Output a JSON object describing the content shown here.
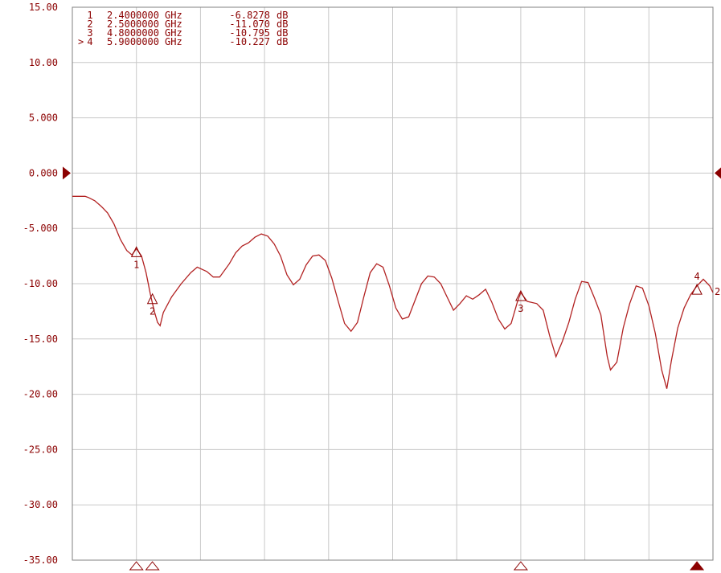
{
  "colors": {
    "trace": "#b22222",
    "text": "#8b0000",
    "grid": "#c8c8c8",
    "frame": "#808080",
    "background": "#ffffff"
  },
  "chart_data": {
    "type": "line",
    "title": "",
    "xlabel": "",
    "ylabel": "",
    "ylim": [
      -35,
      15
    ],
    "yticks": [
      "15.00",
      "10.00",
      "5.000",
      "0.000",
      "-5.000",
      "-10.00",
      "-15.00",
      "-20.00",
      "-25.00",
      "-30.00",
      "-35.00"
    ],
    "x_divisions": 10,
    "reference_level": 0,
    "series": [
      {
        "values": [
          [
            0,
            -2.1
          ],
          [
            0.2,
            -2.1
          ],
          [
            0.25,
            -2.2
          ],
          [
            0.35,
            -2.5
          ],
          [
            0.45,
            -3.0
          ],
          [
            0.55,
            -3.6
          ],
          [
            0.65,
            -4.6
          ],
          [
            0.75,
            -6.0
          ],
          [
            0.85,
            -7.0
          ],
          [
            0.93,
            -7.4
          ],
          [
            1.0,
            -6.83
          ],
          [
            1.08,
            -7.5
          ],
          [
            1.15,
            -9.0
          ],
          [
            1.22,
            -11.0
          ],
          [
            1.28,
            -12.5
          ],
          [
            1.33,
            -13.5
          ],
          [
            1.37,
            -13.8
          ],
          [
            1.42,
            -12.6
          ],
          [
            1.55,
            -11.2
          ],
          [
            1.7,
            -10.0
          ],
          [
            1.85,
            -9.0
          ],
          [
            1.95,
            -8.5
          ],
          [
            2.1,
            -8.9
          ],
          [
            2.2,
            -9.4
          ],
          [
            2.3,
            -9.4
          ],
          [
            2.45,
            -8.2
          ],
          [
            2.55,
            -7.2
          ],
          [
            2.65,
            -6.6
          ],
          [
            2.75,
            -6.3
          ],
          [
            2.85,
            -5.8
          ],
          [
            2.95,
            -5.5
          ],
          [
            3.05,
            -5.7
          ],
          [
            3.15,
            -6.4
          ],
          [
            3.25,
            -7.5
          ],
          [
            3.35,
            -9.2
          ],
          [
            3.45,
            -10.1
          ],
          [
            3.55,
            -9.6
          ],
          [
            3.65,
            -8.3
          ],
          [
            3.75,
            -7.5
          ],
          [
            3.85,
            -7.4
          ],
          [
            3.95,
            -7.9
          ],
          [
            4.05,
            -9.5
          ],
          [
            4.15,
            -11.6
          ],
          [
            4.25,
            -13.6
          ],
          [
            4.35,
            -14.3
          ],
          [
            4.45,
            -13.5
          ],
          [
            4.55,
            -11.2
          ],
          [
            4.65,
            -9.0
          ],
          [
            4.75,
            -8.2
          ],
          [
            4.85,
            -8.5
          ],
          [
            4.95,
            -10.2
          ],
          [
            5.05,
            -12.2
          ],
          [
            5.15,
            -13.2
          ],
          [
            5.25,
            -13.0
          ],
          [
            5.35,
            -11.5
          ],
          [
            5.45,
            -10.0
          ],
          [
            5.55,
            -9.3
          ],
          [
            5.65,
            -9.4
          ],
          [
            5.75,
            -10.0
          ],
          [
            5.85,
            -11.2
          ],
          [
            5.95,
            -12.4
          ],
          [
            6.05,
            -11.8
          ],
          [
            6.15,
            -11.1
          ],
          [
            6.25,
            -11.4
          ],
          [
            6.35,
            -11.0
          ],
          [
            6.45,
            -10.5
          ],
          [
            6.55,
            -11.7
          ],
          [
            6.65,
            -13.2
          ],
          [
            6.75,
            -14.1
          ],
          [
            6.85,
            -13.6
          ],
          [
            6.95,
            -11.6
          ],
          [
            7.0,
            -10.8
          ],
          [
            7.1,
            -11.6
          ],
          [
            7.25,
            -11.8
          ],
          [
            7.35,
            -12.4
          ],
          [
            7.45,
            -14.7
          ],
          [
            7.55,
            -16.6
          ],
          [
            7.65,
            -15.2
          ],
          [
            7.75,
            -13.5
          ],
          [
            7.85,
            -11.4
          ],
          [
            7.95,
            -9.8
          ],
          [
            8.05,
            -9.9
          ],
          [
            8.15,
            -11.3
          ],
          [
            8.25,
            -12.8
          ],
          [
            8.35,
            -16.6
          ],
          [
            8.4,
            -17.8
          ],
          [
            8.5,
            -17.1
          ],
          [
            8.6,
            -14.0
          ],
          [
            8.7,
            -11.8
          ],
          [
            8.8,
            -10.2
          ],
          [
            8.9,
            -10.4
          ],
          [
            9.0,
            -12.0
          ],
          [
            9.1,
            -14.5
          ],
          [
            9.2,
            -17.8
          ],
          [
            9.28,
            -19.5
          ],
          [
            9.35,
            -17.0
          ],
          [
            9.45,
            -14.0
          ],
          [
            9.55,
            -12.2
          ],
          [
            9.65,
            -11.0
          ],
          [
            9.75,
            -10.2
          ],
          [
            9.85,
            -9.6
          ],
          [
            9.95,
            -10.2
          ],
          [
            10.0,
            -10.8
          ]
        ]
      }
    ],
    "markers": [
      {
        "id": "1",
        "x": 1.0,
        "y": -6.8278,
        "axis_marker": "open"
      },
      {
        "id": "2",
        "x": 1.25,
        "y": -11.07,
        "axis_marker": "open"
      },
      {
        "id": "3",
        "x": 7.0,
        "y": -10.795,
        "axis_marker": "open"
      },
      {
        "id": "4",
        "x": 9.75,
        "y": -10.227,
        "axis_marker": "filled"
      }
    ],
    "marker_table": [
      {
        "prefix": "",
        "num": "1",
        "freq": "2.4000000",
        "freq_unit": "GHz",
        "val": "-6.8278",
        "val_unit": "dB"
      },
      {
        "prefix": "",
        "num": "2",
        "freq": "2.5000000",
        "freq_unit": "GHz",
        "val": "-11.070",
        "val_unit": "dB"
      },
      {
        "prefix": "",
        "num": "3",
        "freq": "4.8000000",
        "freq_unit": "GHz",
        "val": "-10.795",
        "val_unit": "dB"
      },
      {
        "prefix": ">",
        "num": "4",
        "freq": "5.9000000",
        "freq_unit": "GHz",
        "val": "-10.227",
        "val_unit": "dB"
      }
    ],
    "edge_label": "2"
  }
}
